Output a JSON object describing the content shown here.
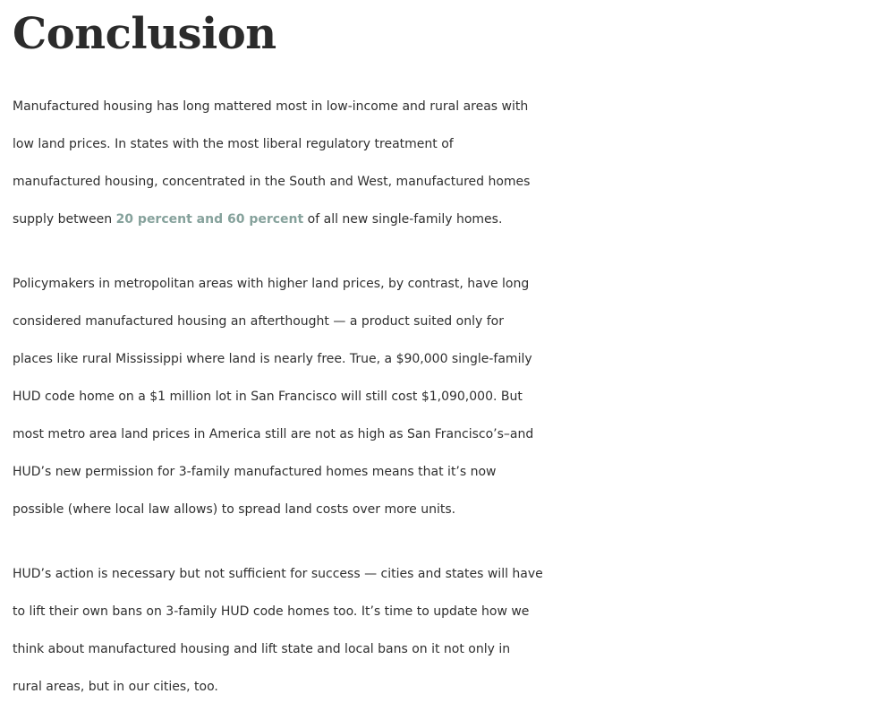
{
  "heading": "Conclusion",
  "paragraphs": [
    {
      "lines": [
        "Manufactured housing has long mattered most in low-income and rural areas with",
        "low land prices. In states with the most liberal regulatory treatment of",
        "manufactured housing, concentrated in the South and West, manufactured homes"
      ],
      "last_line_before": "supply between ",
      "link_text": "20 percent and 60 percent",
      "last_line_after": " of all new single-family homes."
    },
    {
      "lines": [
        "Policymakers in metropolitan areas with higher land prices, by contrast, have long",
        "considered manufactured housing an afterthought — a product suited only for",
        "places like rural Mississippi where land is nearly free. True, a $90,000 single-family",
        "HUD code home on a $1 million lot in San Francisco will still cost $1,090,000. But",
        "most metro area land prices in America still are not as high as San Francisco’s–and",
        "HUD’s new permission for 3-family manufactured homes means that it’s now",
        "possible (where local law allows) to spread land costs over more units."
      ]
    },
    {
      "lines": [
        "HUD’s action is necessary but not sufficient for success — cities and states will have",
        "to lift their own bans on 3-family HUD code homes too. It’s time to update how we",
        "think about manufactured housing and lift state and local bans on it not only in",
        "rural areas, but in our cities, too."
      ]
    }
  ],
  "colors": {
    "text": "#2f2f2f",
    "heading": "#2b2b2b",
    "link": "#86a29c"
  }
}
